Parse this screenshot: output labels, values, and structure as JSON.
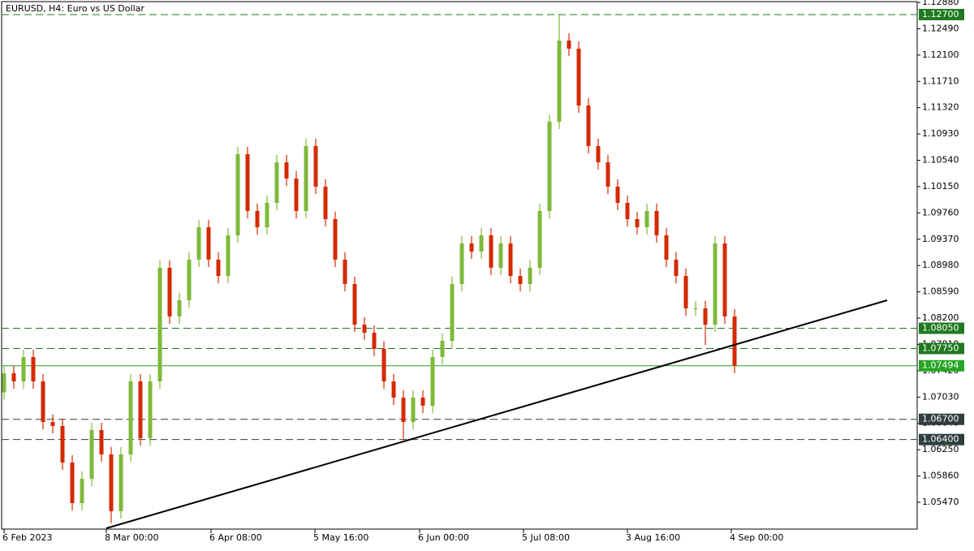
{
  "chart_data": {
    "type": "candlestick",
    "title": "EURUSD, H4:  Euro vs US Dollar",
    "up_color": "#7fb93a",
    "down_color": "#d42a00",
    "x": [
      0,
      12,
      24,
      36,
      48,
      60,
      72,
      84,
      96,
      108,
      120,
      132,
      144,
      156,
      168,
      180,
      192,
      204,
      216,
      228,
      240,
      252,
      264,
      276,
      288,
      300,
      312,
      324,
      336,
      348,
      360,
      372,
      384,
      396,
      408,
      420,
      432,
      444,
      456,
      468,
      480,
      492,
      504,
      516,
      528,
      540,
      552,
      564,
      576,
      588,
      600,
      612,
      624,
      636,
      648,
      660,
      672,
      684,
      696,
      708,
      720,
      732,
      744,
      756,
      768,
      780,
      792,
      804,
      816,
      828,
      840,
      852,
      864,
      876,
      888,
      900
    ],
    "open": [
      1.071,
      1.07383,
      1.07262,
      1.07623,
      1.07262,
      1.06661,
      1.06601,
      1.0606,
      1.05458,
      1.05819,
      1.06541,
      1.0618,
      1.05338,
      1.0618,
      1.07262,
      1.0642,
      1.07262,
      1.08947,
      1.08225,
      1.08465,
      1.09067,
      1.09548,
      1.09067,
      1.08826,
      1.09428,
      1.10631,
      1.09789,
      1.09548,
      1.09909,
      1.1051,
      1.1027,
      1.09789,
      1.10751,
      1.10149,
      1.09668,
      1.09067,
      1.08706,
      1.08104,
      1.07984,
      1.07744,
      1.07262,
      1.07022,
      1.06661,
      1.07022,
      1.06902,
      1.07623,
      1.07864,
      1.08706,
      1.09307,
      1.09187,
      1.09428,
      1.08947,
      1.09307,
      1.08826,
      1.08706,
      1.08947,
      1.09789,
      1.11112,
      1.12315,
      1.12194,
      1.11352,
      1.10751,
      1.1051,
      1.10149,
      1.09909,
      1.09668,
      1.09548,
      1.09789,
      1.09428,
      1.09067,
      1.08826,
      1.08345,
      1.08345,
      1.08104,
      1.09307,
      1.08225
    ],
    "high": [
      1.07493,
      1.07493,
      1.07733,
      1.07733,
      1.07372,
      1.06771,
      1.06711,
      1.0617,
      1.05929,
      1.06651,
      1.06651,
      1.0629,
      1.0629,
      1.07372,
      1.07372,
      1.07372,
      1.09057,
      1.09057,
      1.08575,
      1.09177,
      1.09658,
      1.09658,
      1.09177,
      1.09538,
      1.10741,
      1.10741,
      1.09899,
      1.10019,
      1.1062,
      1.1062,
      1.1038,
      1.10861,
      1.10861,
      1.10259,
      1.09778,
      1.09177,
      1.08816,
      1.08214,
      1.08094,
      1.07854,
      1.07372,
      1.07132,
      1.07132,
      1.07132,
      1.07733,
      1.07974,
      1.08816,
      1.09417,
      1.09417,
      1.09538,
      1.09538,
      1.09417,
      1.09417,
      1.08936,
      1.09057,
      1.09899,
      1.11222,
      1.127,
      1.12425,
      1.12304,
      1.11462,
      1.10861,
      1.1062,
      1.10259,
      1.10019,
      1.09778,
      1.09899,
      1.09899,
      1.09538,
      1.09177,
      1.08936,
      1.08455,
      1.08455,
      1.09417,
      1.09417,
      1.08335
    ],
    "low": [
      1.0699,
      1.07152,
      1.07152,
      1.07152,
      1.06551,
      1.06491,
      1.0595,
      1.05348,
      1.05348,
      1.05709,
      1.0607,
      1.0516,
      1.05228,
      1.0607,
      1.0631,
      1.0631,
      1.07152,
      1.08115,
      1.08115,
      1.08355,
      1.08957,
      1.08957,
      1.08716,
      1.08716,
      1.09318,
      1.09679,
      1.09438,
      1.09438,
      1.09799,
      1.1016,
      1.09679,
      1.09679,
      1.10039,
      1.09558,
      1.08957,
      1.08596,
      1.07994,
      1.07874,
      1.07634,
      1.07152,
      1.06912,
      1.064,
      1.06551,
      1.06792,
      1.06792,
      1.07513,
      1.07754,
      1.08596,
      1.09077,
      1.09077,
      1.08837,
      1.08837,
      1.08716,
      1.08596,
      1.08596,
      1.08837,
      1.09679,
      1.11002,
      1.12084,
      1.11242,
      1.10641,
      1.104,
      1.10039,
      1.09799,
      1.09558,
      1.09438,
      1.09438,
      1.09318,
      1.08957,
      1.08716,
      1.08235,
      1.08235,
      1.078,
      1.07994,
      1.08115,
      1.07384
    ],
    "close": [
      1.07383,
      1.07262,
      1.07623,
      1.07262,
      1.06661,
      1.06601,
      1.0606,
      1.05458,
      1.05819,
      1.06541,
      1.0618,
      1.05338,
      1.0618,
      1.07262,
      1.0642,
      1.07262,
      1.08947,
      1.08225,
      1.08465,
      1.09067,
      1.09548,
      1.09067,
      1.08826,
      1.09428,
      1.10631,
      1.09789,
      1.09548,
      1.09909,
      1.1051,
      1.1027,
      1.09789,
      1.10751,
      1.10149,
      1.09668,
      1.09067,
      1.08706,
      1.08104,
      1.07984,
      1.07744,
      1.07262,
      1.07022,
      1.06661,
      1.07022,
      1.06902,
      1.07623,
      1.07864,
      1.08706,
      1.09307,
      1.09187,
      1.09428,
      1.08947,
      1.09307,
      1.08826,
      1.08706,
      1.08947,
      1.09789,
      1.11112,
      1.12315,
      1.12194,
      1.11352,
      1.10751,
      1.1051,
      1.10149,
      1.09909,
      1.09668,
      1.09548,
      1.09789,
      1.09428,
      1.09067,
      1.08826,
      1.08345,
      1.08345,
      1.08104,
      1.09307,
      1.08225,
      1.07494
    ],
    "xlim": [
      -5,
      1125
    ],
    "ylim": [
      1.05073,
      1.12916
    ],
    "xticks": [
      {
        "value": 0,
        "label": "6 Feb 2023"
      },
      {
        "value": 126,
        "label": "8 Mar 00:00"
      },
      {
        "value": 255,
        "label": "6 Apr 08:00"
      },
      {
        "value": 383,
        "label": "5 May 16:00"
      },
      {
        "value": 512,
        "label": "6 Jun 00:00"
      },
      {
        "value": 640,
        "label": "5 Jul 08:00"
      },
      {
        "value": 768,
        "label": "3 Aug 16:00"
      },
      {
        "value": 896,
        "label": "4 Sep 00:00"
      }
    ],
    "yticks": [
      {
        "value": 1.1288,
        "label": "1.12880"
      },
      {
        "value": 1.1249,
        "label": "1.12490"
      },
      {
        "value": 1.121,
        "label": "1.12100"
      },
      {
        "value": 1.1171,
        "label": "1.11710"
      },
      {
        "value": 1.1132,
        "label": "1.11320"
      },
      {
        "value": 1.1093,
        "label": "1.10930"
      },
      {
        "value": 1.1054,
        "label": "1.10540"
      },
      {
        "value": 1.1015,
        "label": "1.10150"
      },
      {
        "value": 1.0976,
        "label": "1.09760"
      },
      {
        "value": 1.0937,
        "label": "1.09370"
      },
      {
        "value": 1.0898,
        "label": "1.08980"
      },
      {
        "value": 1.0859,
        "label": "1.08590"
      },
      {
        "value": 1.082,
        "label": "1.08200"
      },
      {
        "value": 1.0781,
        "label": "1.07810"
      },
      {
        "value": 1.0742,
        "label": "1.07420"
      },
      {
        "value": 1.0703,
        "label": "1.07030"
      },
      {
        "value": 1.0664,
        "label": "1.06640"
      },
      {
        "value": 1.0625,
        "label": "1.06250"
      },
      {
        "value": 1.0586,
        "label": "1.05860"
      },
      {
        "value": 1.0547,
        "label": "1.05470"
      }
    ],
    "levels": [
      {
        "value": 1.127,
        "label": "1.12700",
        "color": "#1f7a1f",
        "dashed": true
      },
      {
        "value": 1.0805,
        "label": "1.08050",
        "color": "#1f7a1f",
        "dashed": true
      },
      {
        "value": 1.0775,
        "label": "1.07750",
        "color": "#1f7a1f",
        "dashed": true
      },
      {
        "value": 1.07494,
        "label": "1.07494",
        "color": "#26a626",
        "dashed": false
      },
      {
        "value": 1.067,
        "label": "1.06700",
        "color": "#2f3d3d",
        "dashed": true
      },
      {
        "value": 1.064,
        "label": "1.06400",
        "color": "#2f3d3d",
        "dashed": true
      }
    ],
    "trendline": {
      "x": [
        126,
        1088
      ],
      "y": [
        1.05085,
        1.08465
      ],
      "color": "#000000"
    }
  }
}
